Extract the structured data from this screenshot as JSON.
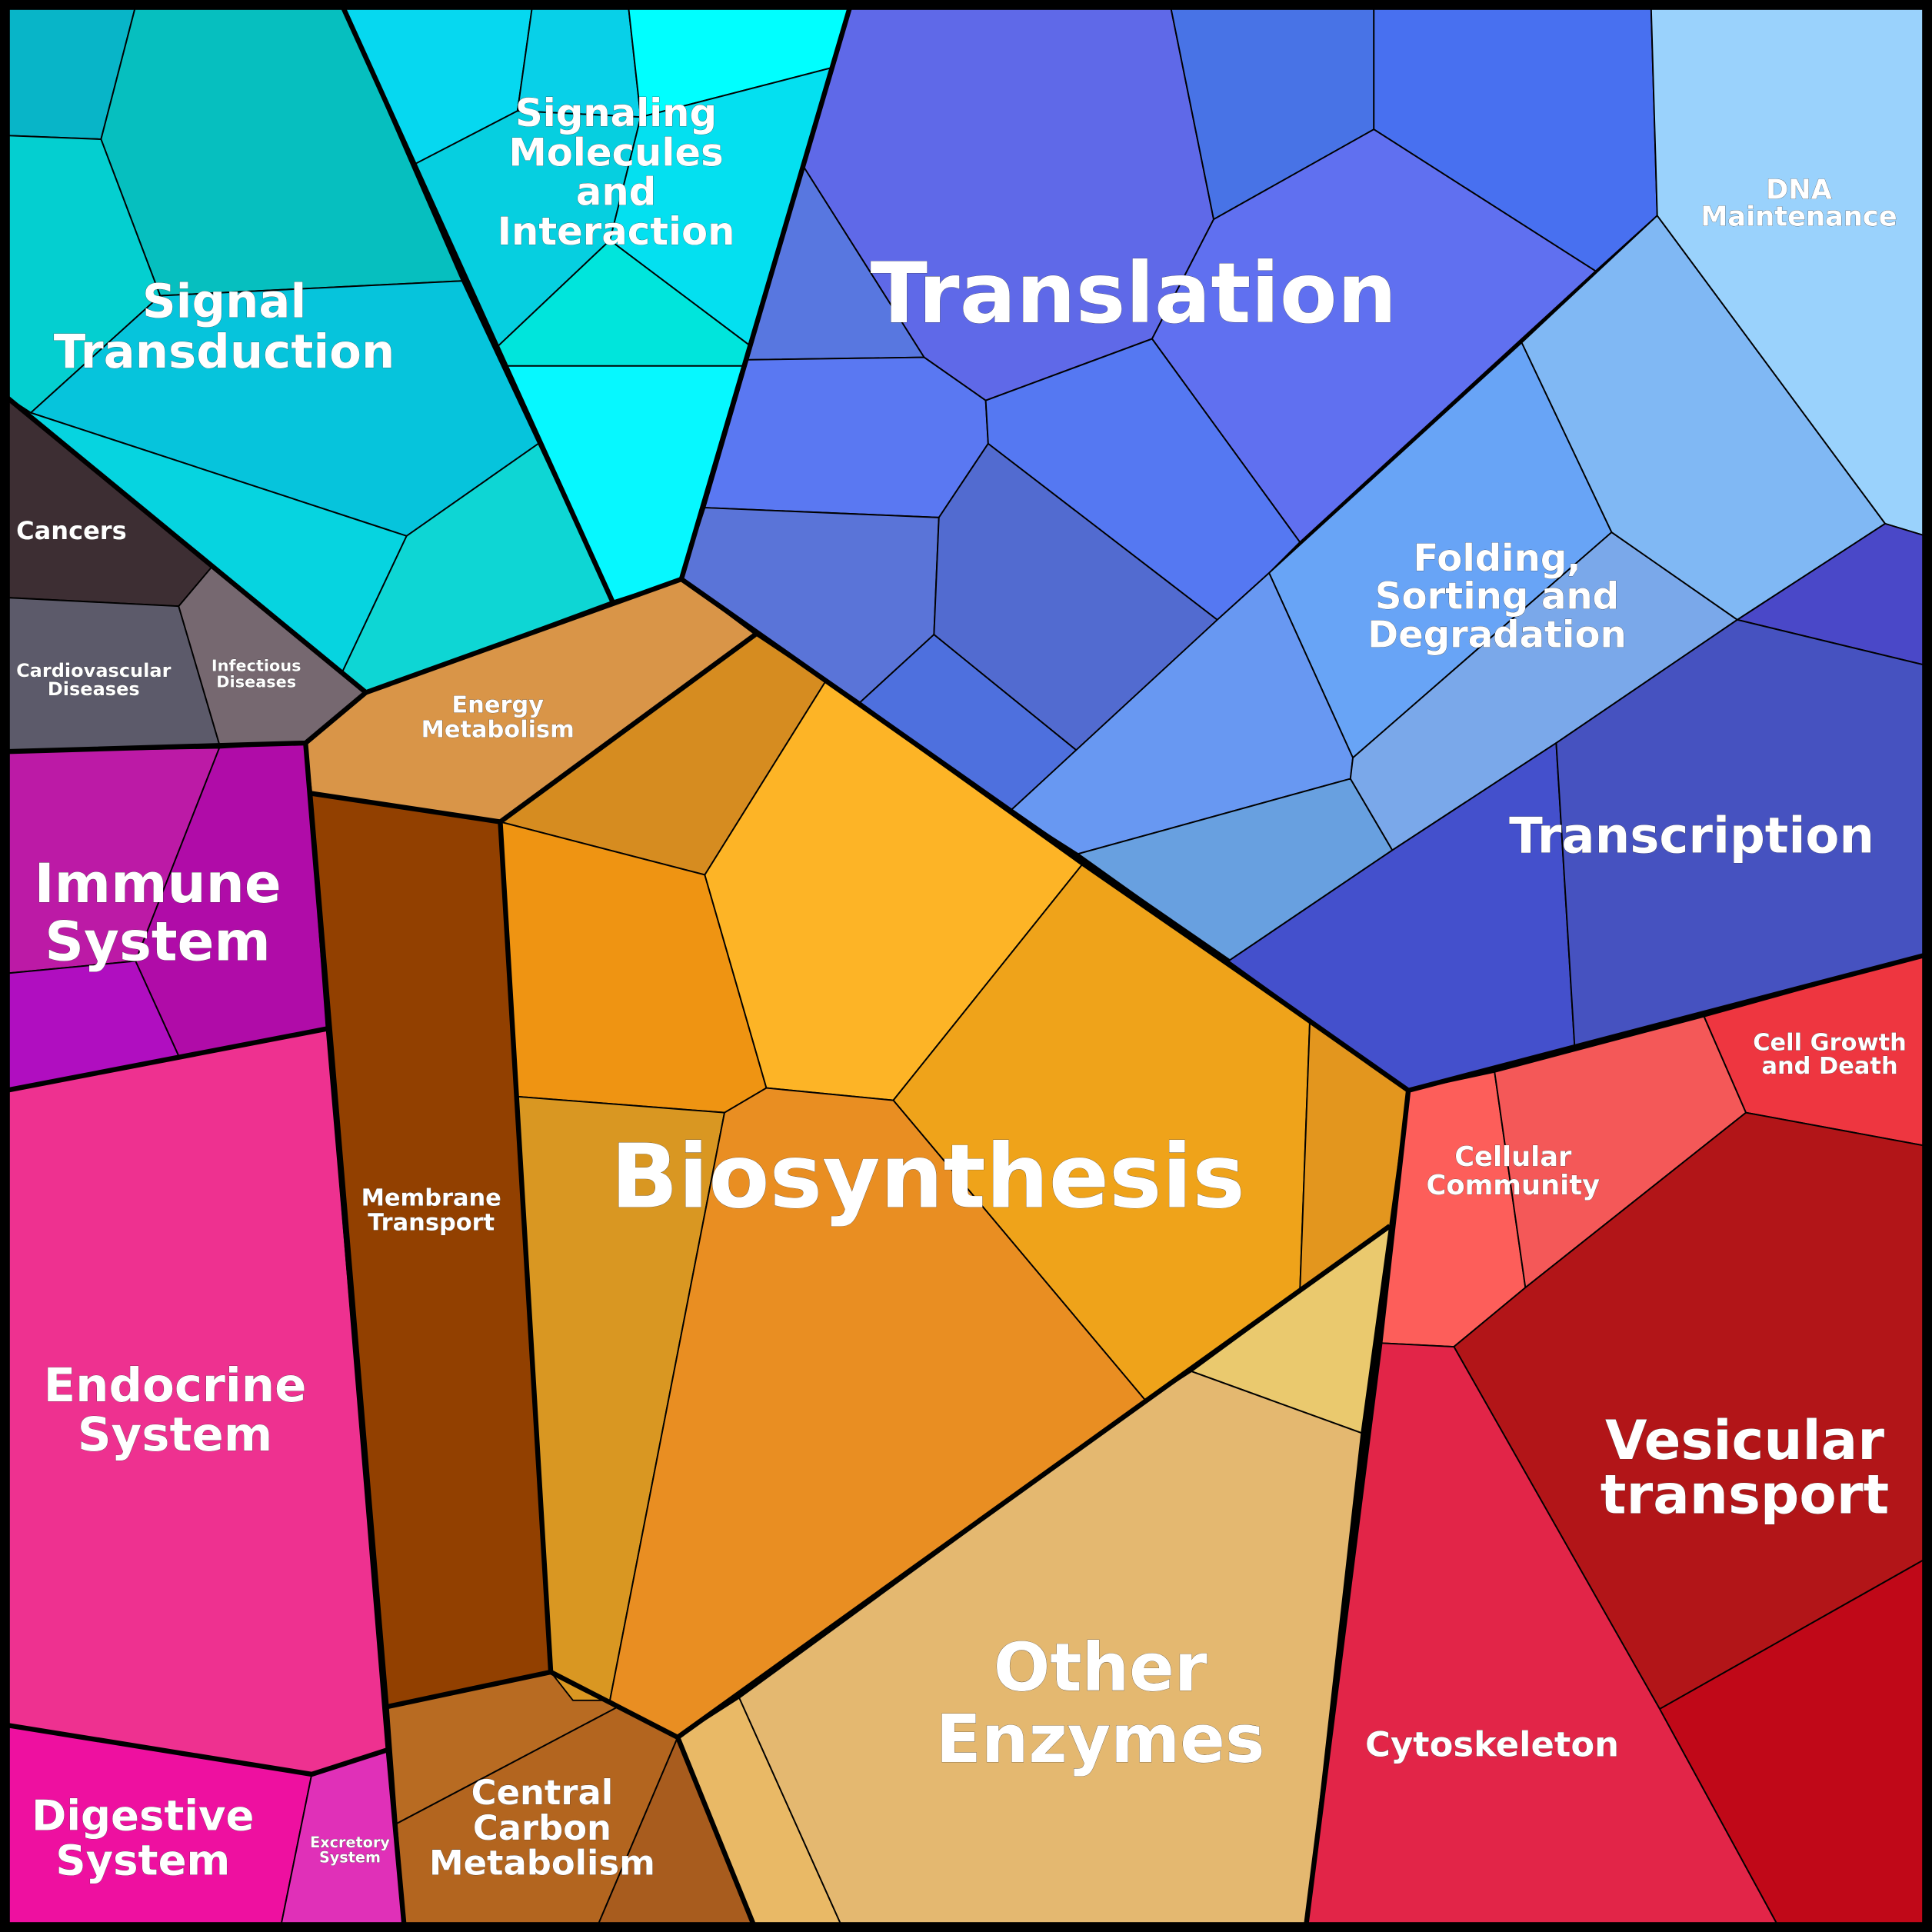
{
  "labels": [
    {
      "lines": [
        "Signal",
        "Transduction"
      ]
    },
    {
      "lines": [
        "Signaling",
        "Molecules",
        "and",
        "Interaction"
      ]
    },
    {
      "lines": [
        "Translation"
      ]
    },
    {
      "lines": [
        "DNA",
        "Maintenance"
      ]
    },
    {
      "lines": [
        "Folding,",
        "Sorting and",
        "Degradation"
      ]
    },
    {
      "lines": [
        "Transcription"
      ]
    },
    {
      "lines": [
        "Cancers"
      ]
    },
    {
      "lines": [
        "Cardiovascular",
        "Diseases"
      ]
    },
    {
      "lines": [
        "Infectious",
        "Diseases"
      ]
    },
    {
      "lines": [
        "Energy",
        "Metabolism"
      ]
    },
    {
      "lines": [
        "Immune",
        "System"
      ]
    },
    {
      "lines": [
        "Membrane",
        "Transport"
      ]
    },
    {
      "lines": [
        "Biosynthesis"
      ]
    },
    {
      "lines": [
        "Endocrine",
        "System"
      ]
    },
    {
      "lines": [
        "Digestive",
        "System"
      ]
    },
    {
      "lines": [
        "Excretory",
        "System"
      ]
    },
    {
      "lines": [
        "Central",
        "Carbon",
        "Metabolism"
      ]
    },
    {
      "lines": [
        "Other",
        "Enzymes"
      ]
    },
    {
      "lines": [
        "Cellular",
        "Community"
      ]
    },
    {
      "lines": [
        "Cell Growth",
        "and Death"
      ]
    },
    {
      "lines": [
        "Vesicular",
        "transport"
      ]
    },
    {
      "lines": [
        "Cytoskeleton"
      ]
    }
  ]
}
